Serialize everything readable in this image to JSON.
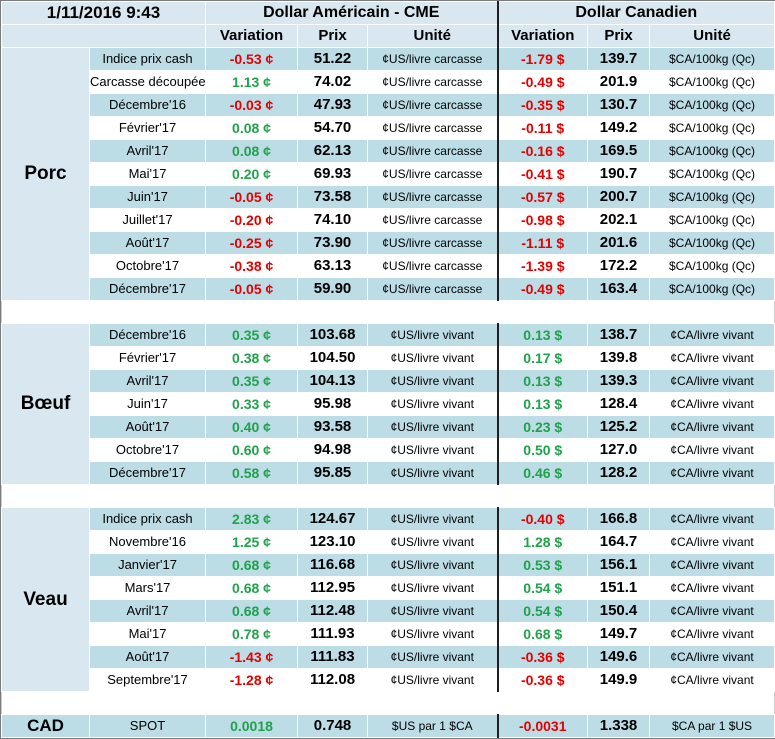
{
  "header": {
    "date": "1/11/2016 9:43",
    "usd_title": "Dollar Américain - CME",
    "cad_title": "Dollar Canadien",
    "col_variation": "Variation",
    "col_prix": "Prix",
    "col_unite": "Unité"
  },
  "groups": [
    {
      "name": "Porc",
      "rows": [
        {
          "label": "Indice prix cash",
          "usd_var": "-0.53 ¢",
          "usd_price": "51.22",
          "usd_unit": "¢US/livre carcasse",
          "cad_var": "-1.79 $",
          "cad_price": "139.7",
          "cad_unit": "$CA/100kg (Qc)"
        },
        {
          "label": "Carcasse découpée",
          "usd_var": "1.13 ¢",
          "usd_price": "74.02",
          "usd_unit": "¢US/livre carcasse",
          "cad_var": "-0.49 $",
          "cad_price": "201.9",
          "cad_unit": "$CA/100kg (Qc)"
        },
        {
          "label": "Décembre'16",
          "usd_var": "-0.03 ¢",
          "usd_price": "47.93",
          "usd_unit": "¢US/livre carcasse",
          "cad_var": "-0.35 $",
          "cad_price": "130.7",
          "cad_unit": "$CA/100kg (Qc)"
        },
        {
          "label": "Février'17",
          "usd_var": "0.08 ¢",
          "usd_price": "54.70",
          "usd_unit": "¢US/livre carcasse",
          "cad_var": "-0.11 $",
          "cad_price": "149.2",
          "cad_unit": "$CA/100kg (Qc)"
        },
        {
          "label": "Avril'17",
          "usd_var": "0.08 ¢",
          "usd_price": "62.13",
          "usd_unit": "¢US/livre carcasse",
          "cad_var": "-0.16 $",
          "cad_price": "169.5",
          "cad_unit": "$CA/100kg (Qc)"
        },
        {
          "label": "Mai'17",
          "usd_var": "0.20 ¢",
          "usd_price": "69.93",
          "usd_unit": "¢US/livre carcasse",
          "cad_var": "-0.41 $",
          "cad_price": "190.7",
          "cad_unit": "$CA/100kg (Qc)"
        },
        {
          "label": "Juin'17",
          "usd_var": "-0.05 ¢",
          "usd_price": "73.58",
          "usd_unit": "¢US/livre carcasse",
          "cad_var": "-0.57 $",
          "cad_price": "200.7",
          "cad_unit": "$CA/100kg (Qc)"
        },
        {
          "label": "Juillet'17",
          "usd_var": "-0.20 ¢",
          "usd_price": "74.10",
          "usd_unit": "¢US/livre carcasse",
          "cad_var": "-0.98 $",
          "cad_price": "202.1",
          "cad_unit": "$CA/100kg (Qc)"
        },
        {
          "label": "Août'17",
          "usd_var": "-0.25 ¢",
          "usd_price": "73.90",
          "usd_unit": "¢US/livre carcasse",
          "cad_var": "-1.11 $",
          "cad_price": "201.6",
          "cad_unit": "$CA/100kg (Qc)"
        },
        {
          "label": "Octobre'17",
          "usd_var": "-0.38 ¢",
          "usd_price": "63.13",
          "usd_unit": "¢US/livre carcasse",
          "cad_var": "-1.39 $",
          "cad_price": "172.2",
          "cad_unit": "$CA/100kg (Qc)"
        },
        {
          "label": "Décembre'17",
          "usd_var": "-0.05 ¢",
          "usd_price": "59.90",
          "usd_unit": "¢US/livre carcasse",
          "cad_var": "-0.49 $",
          "cad_price": "163.4",
          "cad_unit": "$CA/100kg (Qc)"
        }
      ]
    },
    {
      "name": "Bœuf",
      "rows": [
        {
          "label": "Décembre'16",
          "usd_var": "0.35 ¢",
          "usd_price": "103.68",
          "usd_unit": "¢US/livre vivant",
          "cad_var": "0.13 $",
          "cad_price": "138.7",
          "cad_unit": "¢CA/livre vivant"
        },
        {
          "label": "Février'17",
          "usd_var": "0.38 ¢",
          "usd_price": "104.50",
          "usd_unit": "¢US/livre vivant",
          "cad_var": "0.17 $",
          "cad_price": "139.8",
          "cad_unit": "¢CA/livre vivant"
        },
        {
          "label": "Avril'17",
          "usd_var": "0.35 ¢",
          "usd_price": "104.13",
          "usd_unit": "¢US/livre vivant",
          "cad_var": "0.13 $",
          "cad_price": "139.3",
          "cad_unit": "¢CA/livre vivant"
        },
        {
          "label": "Juin'17",
          "usd_var": "0.33 ¢",
          "usd_price": "95.98",
          "usd_unit": "¢US/livre vivant",
          "cad_var": "0.13 $",
          "cad_price": "128.4",
          "cad_unit": "¢CA/livre vivant"
        },
        {
          "label": "Août'17",
          "usd_var": "0.40 ¢",
          "usd_price": "93.58",
          "usd_unit": "¢US/livre vivant",
          "cad_var": "0.23 $",
          "cad_price": "125.2",
          "cad_unit": "¢CA/livre vivant"
        },
        {
          "label": "Octobre'17",
          "usd_var": "0.60 ¢",
          "usd_price": "94.98",
          "usd_unit": "¢US/livre vivant",
          "cad_var": "0.50 $",
          "cad_price": "127.0",
          "cad_unit": "¢CA/livre vivant"
        },
        {
          "label": "Décembre'17",
          "usd_var": "0.58 ¢",
          "usd_price": "95.85",
          "usd_unit": "¢US/livre vivant",
          "cad_var": "0.46 $",
          "cad_price": "128.2",
          "cad_unit": "¢CA/livre vivant"
        }
      ]
    },
    {
      "name": "Veau",
      "rows": [
        {
          "label": "Indice prix cash",
          "usd_var": "2.83 ¢",
          "usd_price": "124.67",
          "usd_unit": "¢US/livre vivant",
          "cad_var": "-0.40 $",
          "cad_price": "166.8",
          "cad_unit": "¢CA/livre vivant"
        },
        {
          "label": "Novembre'16",
          "usd_var": "1.25 ¢",
          "usd_price": "123.10",
          "usd_unit": "¢US/livre vivant",
          "cad_var": "1.28 $",
          "cad_price": "164.7",
          "cad_unit": "¢CA/livre vivant"
        },
        {
          "label": "Janvier'17",
          "usd_var": "0.68 ¢",
          "usd_price": "116.68",
          "usd_unit": "¢US/livre vivant",
          "cad_var": "0.53 $",
          "cad_price": "156.1",
          "cad_unit": "¢CA/livre vivant"
        },
        {
          "label": "Mars'17",
          "usd_var": "0.68 ¢",
          "usd_price": "112.95",
          "usd_unit": "¢US/livre vivant",
          "cad_var": "0.54 $",
          "cad_price": "151.1",
          "cad_unit": "¢CA/livre vivant"
        },
        {
          "label": "Avril'17",
          "usd_var": "0.68 ¢",
          "usd_price": "112.48",
          "usd_unit": "¢US/livre vivant",
          "cad_var": "0.54 $",
          "cad_price": "150.4",
          "cad_unit": "¢CA/livre vivant"
        },
        {
          "label": "Mai'17",
          "usd_var": "0.78 ¢",
          "usd_price": "111.93",
          "usd_unit": "¢US/livre vivant",
          "cad_var": "0.68 $",
          "cad_price": "149.7",
          "cad_unit": "¢CA/livre vivant"
        },
        {
          "label": "Août'17",
          "usd_var": "-1.43 ¢",
          "usd_price": "111.83",
          "usd_unit": "¢US/livre vivant",
          "cad_var": "-0.36 $",
          "cad_price": "149.6",
          "cad_unit": "¢CA/livre vivant"
        },
        {
          "label": "Septembre'17",
          "usd_var": "-1.28 ¢",
          "usd_price": "112.08",
          "usd_unit": "¢US/livre vivant",
          "cad_var": "-0.36 $",
          "cad_price": "149.9",
          "cad_unit": "¢CA/livre vivant"
        }
      ]
    }
  ],
  "cad_row": {
    "name": "CAD",
    "label": "SPOT",
    "usd_var": "0.0018",
    "usd_price": "0.748",
    "usd_unit": "$US par 1 $CA",
    "cad_var": "-0.0031",
    "cad_price": "1.338",
    "cad_unit": "$CA par 1 $US"
  },
  "colors": {
    "header_bg": "#d9e8f0",
    "stripe_bg": "#bcdce6",
    "positive": "#1fa24a",
    "negative": "#e60000"
  }
}
